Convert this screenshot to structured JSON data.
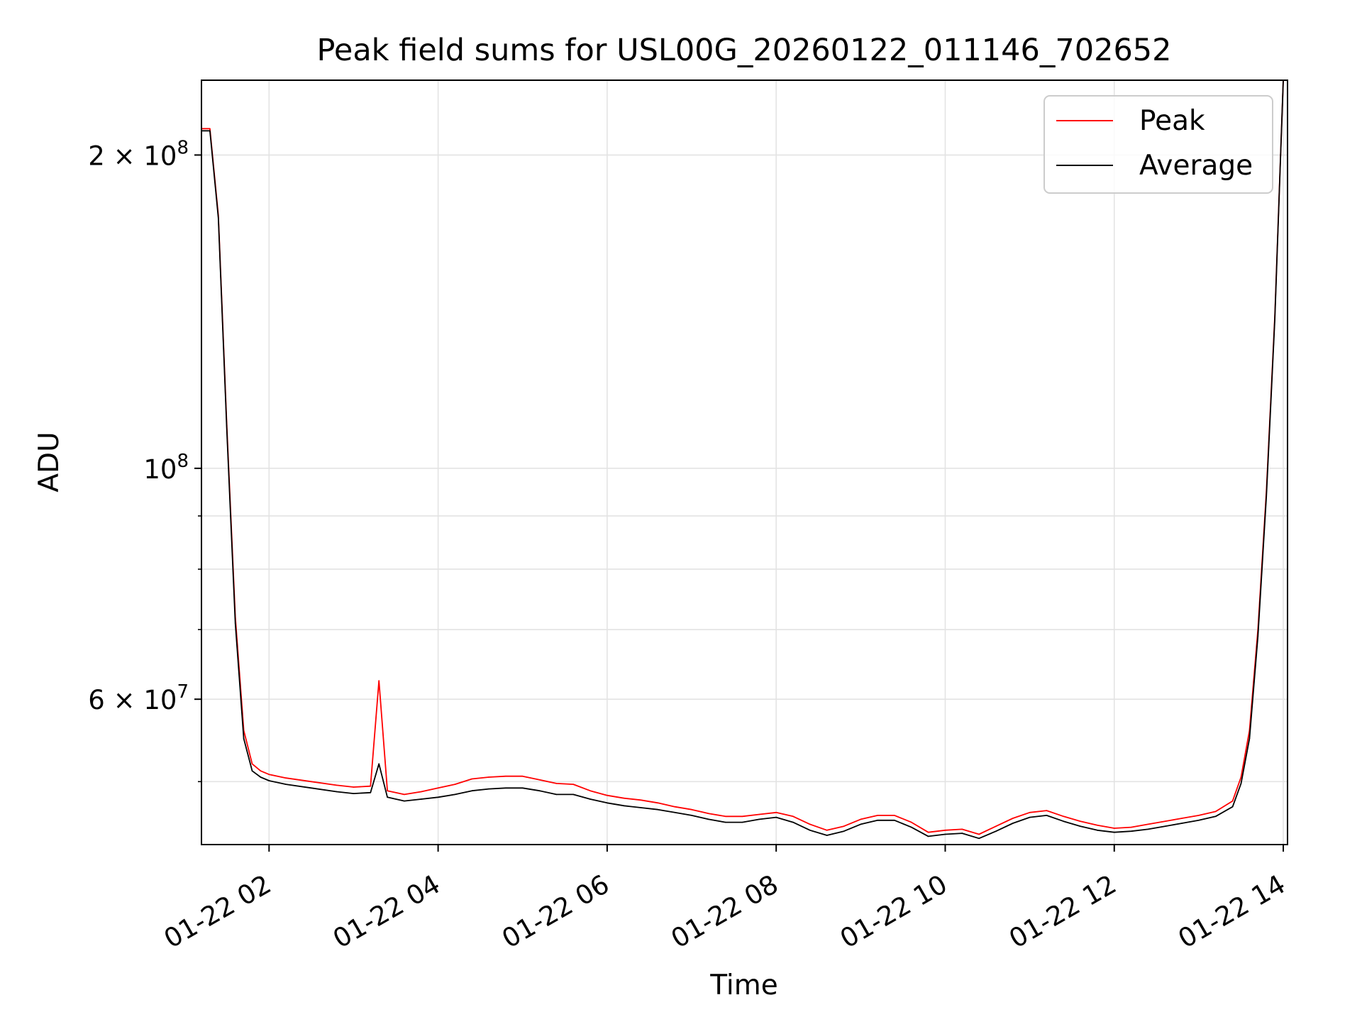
{
  "chart_data": {
    "type": "line",
    "title": "Peak field sums for USL00G_20260122_011146_702652",
    "xlabel": "Time",
    "ylabel": "ADU",
    "yscale": "log",
    "grid": true,
    "legend_position": "top-right",
    "x_is_time": true,
    "x_unit": "hours since 01-22 00:00",
    "xlim": [
      1.2,
      14.05
    ],
    "ylim": [
      43500000,
      236000000
    ],
    "x_ticks": [
      {
        "value": 2,
        "label": "01-22 02"
      },
      {
        "value": 4,
        "label": "01-22 04"
      },
      {
        "value": 6,
        "label": "01-22 06"
      },
      {
        "value": 8,
        "label": "01-22 08"
      },
      {
        "value": 10,
        "label": "01-22 10"
      },
      {
        "value": 12,
        "label": "01-22 12"
      },
      {
        "value": 14,
        "label": "01-22 14"
      }
    ],
    "y_major_ticks": [
      {
        "value": 200000000,
        "base": "2 × 10",
        "exp": "8"
      },
      {
        "value": 100000000,
        "base": "10",
        "exp": "8"
      },
      {
        "value": 60000000,
        "base": "6 × 10",
        "exp": "7"
      }
    ],
    "y_minor_ticks": [
      50000000,
      70000000,
      80000000,
      90000000
    ],
    "series": [
      {
        "name": "Peak",
        "color": "#ff0000",
        "x": [
          1.2,
          1.3,
          1.4,
          1.5,
          1.6,
          1.7,
          1.8,
          1.9,
          2.0,
          2.2,
          2.5,
          2.8,
          3.0,
          3.2,
          3.3,
          3.4,
          3.6,
          3.8,
          4.0,
          4.2,
          4.4,
          4.6,
          4.8,
          5.0,
          5.2,
          5.4,
          5.6,
          5.8,
          6.0,
          6.2,
          6.4,
          6.6,
          6.8,
          7.0,
          7.2,
          7.4,
          7.6,
          7.8,
          8.0,
          8.2,
          8.4,
          8.6,
          8.8,
          9.0,
          9.2,
          9.4,
          9.6,
          9.8,
          10.0,
          10.2,
          10.4,
          10.6,
          10.8,
          11.0,
          11.2,
          11.4,
          11.6,
          11.8,
          12.0,
          12.2,
          12.4,
          12.6,
          12.8,
          13.0,
          13.2,
          13.4,
          13.5,
          13.6,
          13.7,
          13.8,
          13.9,
          14.0
        ],
        "y": [
          212000000,
          212000000,
          175000000,
          110000000,
          72000000,
          56000000,
          52000000,
          51200000,
          50800000,
          50400000,
          50000000,
          49600000,
          49400000,
          49500000,
          62500000,
          49000000,
          48600000,
          48900000,
          49300000,
          49700000,
          50300000,
          50500000,
          50600000,
          50600000,
          50200000,
          49800000,
          49700000,
          49000000,
          48500000,
          48200000,
          48000000,
          47700000,
          47300000,
          47000000,
          46600000,
          46300000,
          46300000,
          46500000,
          46700000,
          46300000,
          45500000,
          44900000,
          45300000,
          46000000,
          46400000,
          46400000,
          45700000,
          44700000,
          44900000,
          45000000,
          44500000,
          45300000,
          46100000,
          46700000,
          46900000,
          46300000,
          45800000,
          45400000,
          45100000,
          45200000,
          45500000,
          45800000,
          46100000,
          46400000,
          46800000,
          47900000,
          50500000,
          56000000,
          70000000,
          95000000,
          140000000,
          236000000
        ]
      },
      {
        "name": "Average",
        "color": "#000000",
        "x": [
          1.2,
          1.3,
          1.4,
          1.5,
          1.6,
          1.7,
          1.8,
          1.9,
          2.0,
          2.2,
          2.5,
          2.8,
          3.0,
          3.2,
          3.3,
          3.4,
          3.6,
          3.8,
          4.0,
          4.2,
          4.4,
          4.6,
          4.8,
          5.0,
          5.2,
          5.4,
          5.6,
          5.8,
          6.0,
          6.2,
          6.4,
          6.6,
          6.8,
          7.0,
          7.2,
          7.4,
          7.6,
          7.8,
          8.0,
          8.2,
          8.4,
          8.6,
          8.8,
          9.0,
          9.2,
          9.4,
          9.6,
          9.8,
          10.0,
          10.2,
          10.4,
          10.6,
          10.8,
          11.0,
          11.2,
          11.4,
          11.6,
          11.8,
          12.0,
          12.2,
          12.4,
          12.6,
          12.8,
          13.0,
          13.2,
          13.4,
          13.5,
          13.6,
          13.7,
          13.8,
          13.9,
          14.0
        ],
        "y": [
          211000000,
          211000000,
          174000000,
          109000000,
          71000000,
          55000000,
          51200000,
          50500000,
          50100000,
          49700000,
          49300000,
          48900000,
          48700000,
          48800000,
          52000000,
          48300000,
          47900000,
          48100000,
          48300000,
          48600000,
          49000000,
          49200000,
          49300000,
          49300000,
          49000000,
          48600000,
          48600000,
          48100000,
          47700000,
          47400000,
          47200000,
          47000000,
          46700000,
          46400000,
          46000000,
          45700000,
          45700000,
          46000000,
          46200000,
          45700000,
          44900000,
          44400000,
          44800000,
          45500000,
          45900000,
          45900000,
          45200000,
          44300000,
          44500000,
          44600000,
          44100000,
          44800000,
          45600000,
          46200000,
          46400000,
          45800000,
          45300000,
          44900000,
          44700000,
          44800000,
          45000000,
          45300000,
          45600000,
          45900000,
          46300000,
          47300000,
          49800000,
          55000000,
          69000000,
          94000000,
          139000000,
          236000000
        ]
      }
    ]
  }
}
